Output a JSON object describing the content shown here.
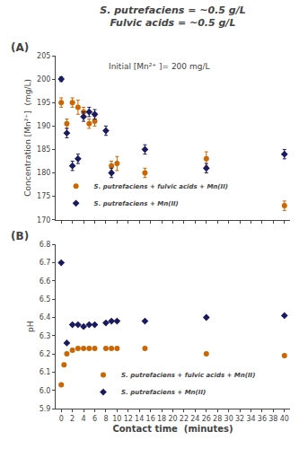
{
  "chart_data": [
    {
      "type": "scatter",
      "title": "S. putrefaciens = ~0.5 g/L",
      "subtitle": "Fulvic acids = ~0.5 g/L",
      "annotations": [
        "(A)",
        "Initial [Mn²⁺ ]= 200 mg/L"
      ],
      "y_label": "Concentration [Μn²⁺]  (mg/L)",
      "xlim": [
        -1,
        41
      ],
      "xticks": [
        0,
        2,
        4,
        6,
        8,
        10,
        12,
        14,
        16,
        18,
        20,
        22,
        24,
        26,
        28,
        30,
        32,
        34,
        36,
        38,
        40
      ],
      "ylim": [
        170,
        205
      ],
      "yticks": [
        170,
        175,
        180,
        185,
        190,
        195,
        200,
        205
      ],
      "tick_labels": "y",
      "grid": false,
      "legend": "lower left",
      "series": [
        {
          "name": "S. putrefaciens + fulvic acids + Mn(II)",
          "color": "#CC6600",
          "marker": "circle",
          "x": [
            0,
            1,
            2,
            3,
            4,
            5,
            6,
            9,
            10,
            15,
            26,
            40
          ],
          "values": [
            195.0,
            190.5,
            195.0,
            194.0,
            193.0,
            190.5,
            191.0,
            181.5,
            182.0,
            180.0,
            183.0,
            173.0
          ],
          "error": [
            1.0,
            1.0,
            1.0,
            1.5,
            1.0,
            1.0,
            1.0,
            1.0,
            1.5,
            1.0,
            1.5,
            1.0
          ]
        },
        {
          "name": "S. putrefaciens + Mn(II)",
          "color": "#1A1A5E",
          "marker": "diamond",
          "x": [
            0,
            1,
            2,
            3,
            4,
            5,
            6,
            8,
            9,
            15,
            26,
            40
          ],
          "values": [
            200.0,
            188.5,
            181.5,
            183.0,
            192.0,
            193.0,
            192.5,
            189.0,
            180.0,
            185.0,
            181.0,
            184.0
          ],
          "error": [
            0.5,
            1.0,
            1.0,
            1.0,
            1.0,
            1.0,
            1.0,
            1.0,
            1.0,
            1.0,
            1.0,
            1.0
          ]
        }
      ]
    },
    {
      "type": "scatter",
      "annotations": [
        "(B)"
      ],
      "x_label": "Contact time  (minutes)",
      "y_label": "pH",
      "xlim": [
        -1,
        41
      ],
      "xticks": [
        0,
        2,
        4,
        6,
        8,
        10,
        12,
        14,
        16,
        18,
        20,
        22,
        24,
        26,
        28,
        30,
        32,
        34,
        36,
        38,
        40
      ],
      "ylim": [
        5.9,
        6.8
      ],
      "yticks": [
        5.9,
        {
          "value": 6.0,
          "label": "6.0"
        },
        6.1,
        6.2,
        6.3,
        6.4,
        6.5,
        6.6,
        6.7,
        6.8
      ],
      "grid": false,
      "legend": "lower center",
      "series": [
        {
          "name": "S. putrefaciens + fulvic acids + Mn(II)",
          "color": "#CC6600",
          "marker": "circle",
          "x": [
            0,
            0.5,
            1,
            2,
            3,
            4,
            5,
            6,
            8,
            9,
            10,
            15,
            26,
            40
          ],
          "values": [
            6.03,
            6.14,
            6.2,
            6.22,
            6.23,
            6.23,
            6.23,
            6.23,
            6.23,
            6.23,
            6.23,
            6.23,
            6.2,
            6.19
          ]
        },
        {
          "name": "S. putrefaciens + Mn(II)",
          "color": "#1A1A5E",
          "marker": "diamond",
          "x": [
            0,
            1,
            2,
            3,
            4,
            5,
            6,
            8,
            9,
            10,
            15,
            26,
            40
          ],
          "values": [
            6.7,
            6.26,
            6.36,
            6.36,
            6.35,
            6.36,
            6.36,
            6.37,
            6.38,
            6.38,
            6.38,
            6.4,
            6.41
          ]
        }
      ]
    }
  ]
}
